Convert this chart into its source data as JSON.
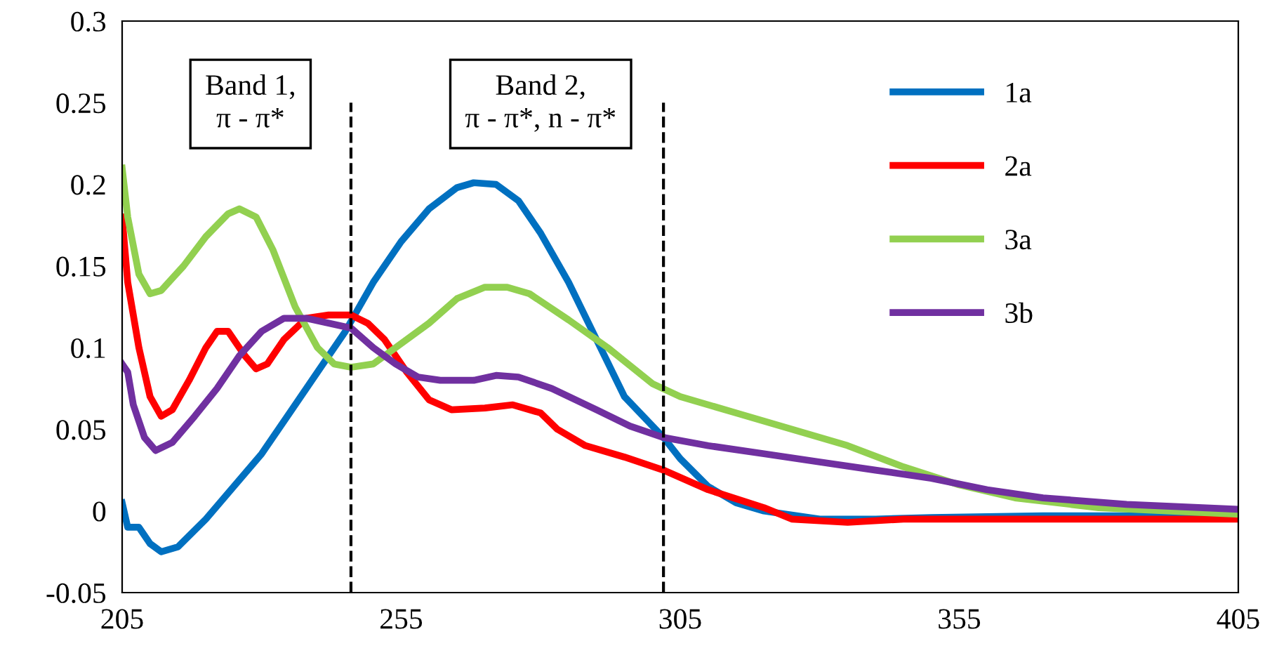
{
  "chart_data": {
    "type": "line",
    "xlim": [
      205,
      405
    ],
    "xticks": [
      205,
      255,
      305,
      355,
      405
    ],
    "ylim": [
      -0.05,
      0.3
    ],
    "yticks": [
      -0.05,
      0,
      0.05,
      0.1,
      0.15,
      0.2,
      0.25,
      0.3
    ],
    "grid": false,
    "legend": "top right",
    "marker": "none",
    "line_style": "solid",
    "annotations": [
      "Band 1,\nπ - π*",
      "Band 2,\nπ - π*, n - π*"
    ],
    "ref_lines": [
      {
        "axis": "x",
        "value": 246,
        "line_style": "dashed",
        "color": "#000000"
      },
      {
        "axis": "x",
        "value": 302,
        "line_style": "dashed",
        "color": "#000000"
      }
    ],
    "series": [
      {
        "name": "1a",
        "color": "#0070c0",
        "x": [
          205,
          206,
          208,
          210,
          212,
          215,
          220,
          225,
          230,
          235,
          240,
          245,
          250,
          255,
          260,
          265,
          268,
          272,
          276,
          280,
          285,
          290,
          295,
          302,
          305,
          310,
          315,
          320,
          330,
          340,
          350,
          370,
          405
        ],
        "values": [
          0.005,
          -0.01,
          -0.01,
          -0.02,
          -0.025,
          -0.022,
          -0.005,
          0.015,
          0.035,
          0.06,
          0.085,
          0.11,
          0.14,
          0.165,
          0.185,
          0.198,
          0.201,
          0.2,
          0.19,
          0.17,
          0.14,
          0.105,
          0.07,
          0.045,
          0.032,
          0.015,
          0.005,
          0,
          -0.005,
          -0.005,
          -0.004,
          -0.003,
          -0.003
        ]
      },
      {
        "name": "2a",
        "color": "#ff0000",
        "x": [
          205,
          206,
          208,
          210,
          212,
          214,
          217,
          220,
          222,
          224,
          227,
          229,
          231,
          234,
          238,
          242,
          246,
          249,
          252,
          256,
          260,
          264,
          270,
          275,
          280,
          283,
          288,
          295,
          302,
          310,
          320,
          325,
          335,
          345,
          360,
          405
        ],
        "values": [
          0.18,
          0.14,
          0.1,
          0.07,
          0.058,
          0.062,
          0.08,
          0.1,
          0.11,
          0.11,
          0.095,
          0.087,
          0.09,
          0.105,
          0.118,
          0.12,
          0.12,
          0.115,
          0.105,
          0.085,
          0.068,
          0.062,
          0.063,
          0.065,
          0.06,
          0.05,
          0.04,
          0.033,
          0.025,
          0.013,
          0.002,
          -0.005,
          -0.007,
          -0.005,
          -0.005,
          -0.005
        ]
      },
      {
        "name": "3a",
        "color": "#92d050",
        "x": [
          205,
          206,
          208,
          210,
          212,
          216,
          220,
          224,
          226,
          229,
          232,
          236,
          240,
          243,
          246,
          250,
          254,
          260,
          265,
          270,
          274,
          278,
          285,
          292,
          300,
          305,
          315,
          325,
          335,
          345,
          355,
          365,
          380,
          405
        ],
        "values": [
          0.21,
          0.18,
          0.145,
          0.133,
          0.135,
          0.15,
          0.168,
          0.182,
          0.185,
          0.18,
          0.16,
          0.125,
          0.1,
          0.09,
          0.088,
          0.09,
          0.1,
          0.115,
          0.13,
          0.137,
          0.137,
          0.133,
          0.117,
          0.1,
          0.078,
          0.07,
          0.06,
          0.05,
          0.04,
          0.027,
          0.016,
          0.008,
          0.002,
          -0.002
        ]
      },
      {
        "name": "3b",
        "color": "#7030a0",
        "x": [
          205,
          206,
          207,
          209,
          211,
          214,
          218,
          222,
          226,
          230,
          234,
          238,
          242,
          246,
          250,
          254,
          258,
          262,
          268,
          272,
          276,
          282,
          290,
          296,
          302,
          310,
          320,
          330,
          340,
          350,
          360,
          370,
          385,
          405
        ],
        "values": [
          0.09,
          0.085,
          0.065,
          0.045,
          0.037,
          0.042,
          0.058,
          0.075,
          0.095,
          0.11,
          0.118,
          0.118,
          0.115,
          0.112,
          0.1,
          0.09,
          0.082,
          0.08,
          0.08,
          0.083,
          0.082,
          0.075,
          0.062,
          0.052,
          0.045,
          0.04,
          0.035,
          0.03,
          0.025,
          0.02,
          0.013,
          0.008,
          0.004,
          0.001
        ]
      }
    ]
  }
}
